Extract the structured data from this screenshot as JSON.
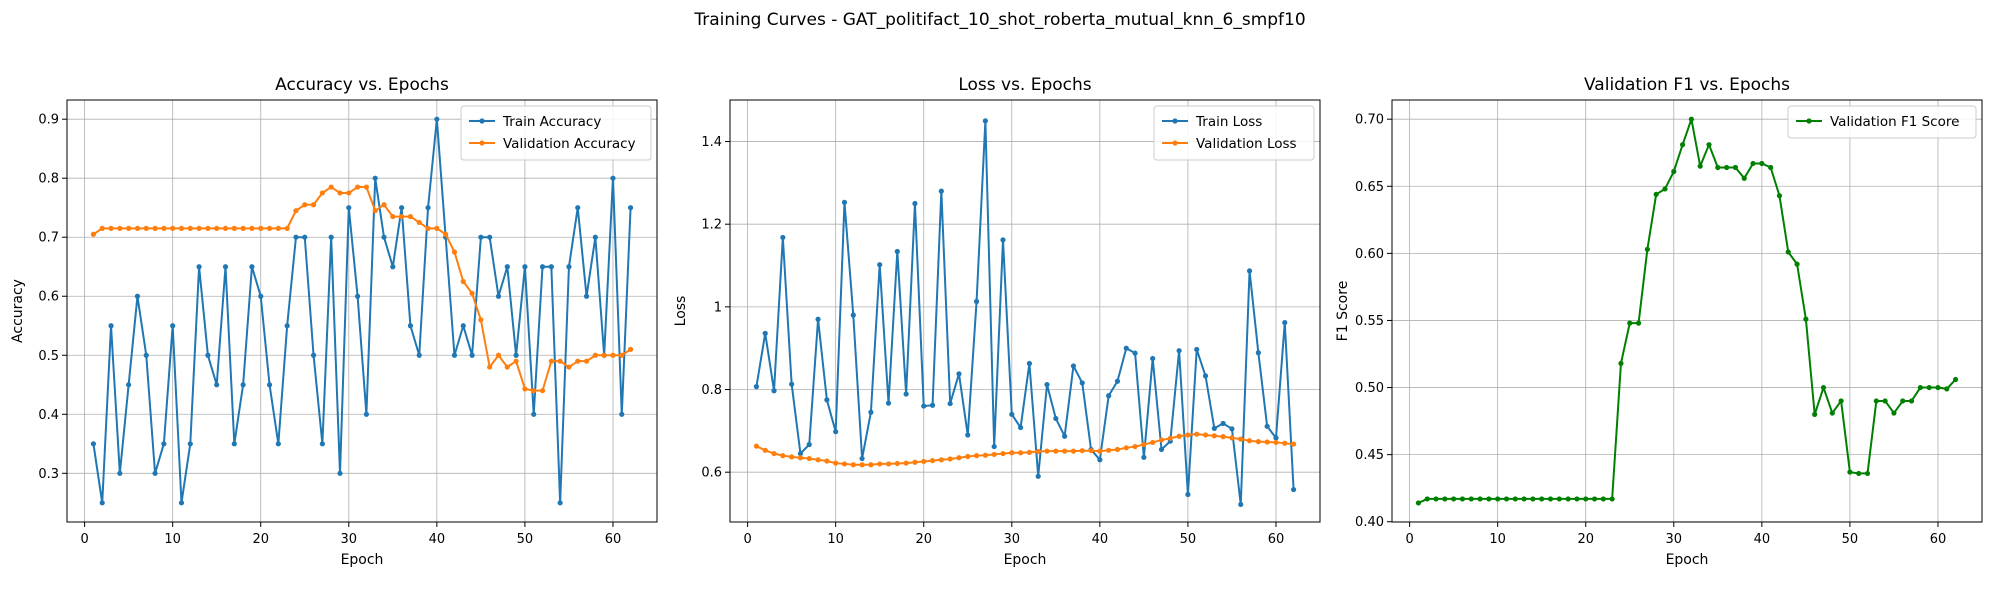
{
  "suptitle": "Training Curves - GAT_politifact_10_shot_roberta_mutual_knn_6_smpf10",
  "chart_data": [
    {
      "type": "line",
      "title": "Accuracy vs. Epochs",
      "xlabel": "Epoch",
      "ylabel": "Accuracy",
      "xlim": [
        -2,
        65
      ],
      "ylim": [
        0.2175,
        0.9325
      ],
      "xticks": [
        0,
        10,
        20,
        30,
        40,
        50,
        60
      ],
      "yticks": [
        0.3,
        0.4,
        0.5,
        0.6,
        0.7,
        0.8,
        0.9
      ],
      "grid": true,
      "legend_position": "upper right",
      "x": [
        1,
        2,
        3,
        4,
        5,
        6,
        7,
        8,
        9,
        10,
        11,
        12,
        13,
        14,
        15,
        16,
        17,
        18,
        19,
        20,
        21,
        22,
        23,
        24,
        25,
        26,
        27,
        28,
        29,
        30,
        31,
        32,
        33,
        34,
        35,
        36,
        37,
        38,
        39,
        40,
        41,
        42,
        43,
        44,
        45,
        46,
        47,
        48,
        49,
        50,
        51,
        52,
        53,
        54,
        55,
        56,
        57,
        58,
        59,
        60,
        61,
        62
      ],
      "series": [
        {
          "name": "Train Accuracy",
          "color": "#1f77b4",
          "values": [
            0.35,
            0.25,
            0.55,
            0.3,
            0.45,
            0.6,
            0.5,
            0.3,
            0.35,
            0.55,
            0.25,
            0.35,
            0.65,
            0.5,
            0.45,
            0.65,
            0.35,
            0.45,
            0.65,
            0.6,
            0.45,
            0.35,
            0.55,
            0.7,
            0.7,
            0.5,
            0.35,
            0.7,
            0.3,
            0.75,
            0.6,
            0.4,
            0.8,
            0.7,
            0.65,
            0.75,
            0.55,
            0.5,
            0.75,
            0.9,
            0.7,
            0.5,
            0.55,
            0.5,
            0.7,
            0.7,
            0.6,
            0.65,
            0.5,
            0.65,
            0.4,
            0.65,
            0.65,
            0.25,
            0.65,
            0.75,
            0.6,
            0.7,
            0.5,
            0.8,
            0.4,
            0.75
          ]
        },
        {
          "name": "Validation Accuracy",
          "color": "#ff7f0e",
          "values": [
            0.705,
            0.715,
            0.715,
            0.715,
            0.715,
            0.715,
            0.715,
            0.715,
            0.715,
            0.715,
            0.715,
            0.715,
            0.715,
            0.715,
            0.715,
            0.715,
            0.715,
            0.715,
            0.715,
            0.715,
            0.715,
            0.715,
            0.715,
            0.745,
            0.755,
            0.755,
            0.775,
            0.785,
            0.775,
            0.775,
            0.785,
            0.785,
            0.745,
            0.755,
            0.735,
            0.735,
            0.735,
            0.725,
            0.715,
            0.715,
            0.705,
            0.675,
            0.625,
            0.605,
            0.56,
            0.48,
            0.5,
            0.48,
            0.49,
            0.443,
            0.44,
            0.44,
            0.49,
            0.49,
            0.48,
            0.49,
            0.49,
            0.5,
            0.5,
            0.5,
            0.5,
            0.51
          ]
        }
      ]
    },
    {
      "type": "line",
      "title": "Loss vs. Epochs",
      "xlabel": "Epoch",
      "ylabel": "Loss",
      "xlim": [
        -2,
        65
      ],
      "ylim": [
        0.4795,
        1.5005
      ],
      "xticks": [
        0,
        10,
        20,
        30,
        40,
        50,
        60
      ],
      "yticks": [
        0.6,
        0.8,
        1.0,
        1.2,
        1.4
      ],
      "grid": true,
      "legend_position": "upper right",
      "x": [
        1,
        2,
        3,
        4,
        5,
        6,
        7,
        8,
        9,
        10,
        11,
        12,
        13,
        14,
        15,
        16,
        17,
        18,
        19,
        20,
        21,
        22,
        23,
        24,
        25,
        26,
        27,
        28,
        29,
        30,
        31,
        32,
        33,
        34,
        35,
        36,
        37,
        38,
        39,
        40,
        41,
        42,
        43,
        44,
        45,
        46,
        47,
        48,
        49,
        50,
        51,
        52,
        53,
        54,
        55,
        56,
        57,
        58,
        59,
        60,
        61,
        62
      ],
      "series": [
        {
          "name": "Train Loss",
          "color": "#1f77b4",
          "values": [
            0.807,
            0.936,
            0.797,
            1.168,
            0.813,
            0.645,
            0.667,
            0.97,
            0.775,
            0.698,
            1.253,
            0.98,
            0.633,
            0.745,
            1.102,
            0.767,
            1.134,
            0.789,
            1.25,
            0.76,
            0.762,
            1.28,
            0.766,
            0.838,
            0.69,
            1.013,
            1.45,
            0.662,
            1.162,
            0.74,
            0.708,
            0.863,
            0.59,
            0.812,
            0.73,
            0.687,
            0.857,
            0.816,
            0.655,
            0.63,
            0.785,
            0.82,
            0.9,
            0.888,
            0.636,
            0.875,
            0.655,
            0.675,
            0.894,
            0.546,
            0.897,
            0.833,
            0.706,
            0.718,
            0.705,
            0.522,
            1.087,
            0.889,
            0.711,
            0.683,
            0.962,
            0.558
          ]
        },
        {
          "name": "Validation Loss",
          "color": "#ff7f0e",
          "values": [
            0.663,
            0.653,
            0.645,
            0.64,
            0.637,
            0.635,
            0.633,
            0.63,
            0.627,
            0.622,
            0.62,
            0.618,
            0.618,
            0.618,
            0.62,
            0.62,
            0.621,
            0.622,
            0.624,
            0.626,
            0.628,
            0.63,
            0.632,
            0.635,
            0.638,
            0.64,
            0.641,
            0.643,
            0.645,
            0.647,
            0.647,
            0.648,
            0.65,
            0.651,
            0.651,
            0.651,
            0.651,
            0.652,
            0.652,
            0.651,
            0.653,
            0.655,
            0.659,
            0.662,
            0.667,
            0.672,
            0.678,
            0.682,
            0.687,
            0.69,
            0.692,
            0.69,
            0.688,
            0.686,
            0.683,
            0.68,
            0.676,
            0.674,
            0.673,
            0.672,
            0.67,
            0.668
          ]
        }
      ]
    },
    {
      "type": "line",
      "title": "Validation F1 vs. Epochs",
      "xlabel": "Epoch",
      "ylabel": "F1 Score",
      "xlim": [
        -2,
        65
      ],
      "ylim": [
        0.3998,
        0.7143
      ],
      "xticks": [
        0,
        10,
        20,
        30,
        40,
        50,
        60
      ],
      "yticks": [
        0.4,
        0.45,
        0.5,
        0.55,
        0.6,
        0.65,
        0.7
      ],
      "ytick_labels": [
        "0.40",
        "0.45",
        "0.50",
        "0.55",
        "0.60",
        "0.65",
        "0.70"
      ],
      "grid": true,
      "legend_position": "upper right",
      "x": [
        1,
        2,
        3,
        4,
        5,
        6,
        7,
        8,
        9,
        10,
        11,
        12,
        13,
        14,
        15,
        16,
        17,
        18,
        19,
        20,
        21,
        22,
        23,
        24,
        25,
        26,
        27,
        28,
        29,
        30,
        31,
        32,
        33,
        34,
        35,
        36,
        37,
        38,
        39,
        40,
        41,
        42,
        43,
        44,
        45,
        46,
        47,
        48,
        49,
        50,
        51,
        52,
        53,
        54,
        55,
        56,
        57,
        58,
        59,
        60,
        61,
        62
      ],
      "series": [
        {
          "name": "Validation F1 Score",
          "color": "#008000",
          "values": [
            0.414,
            0.417,
            0.417,
            0.417,
            0.417,
            0.417,
            0.417,
            0.417,
            0.417,
            0.417,
            0.417,
            0.417,
            0.417,
            0.417,
            0.417,
            0.417,
            0.417,
            0.417,
            0.417,
            0.417,
            0.417,
            0.417,
            0.417,
            0.518,
            0.548,
            0.548,
            0.603,
            0.644,
            0.648,
            0.661,
            0.681,
            0.7,
            0.665,
            0.681,
            0.664,
            0.664,
            0.664,
            0.656,
            0.667,
            0.667,
            0.664,
            0.643,
            0.601,
            0.592,
            0.551,
            0.48,
            0.5,
            0.481,
            0.49,
            0.437,
            0.436,
            0.436,
            0.49,
            0.49,
            0.481,
            0.49,
            0.49,
            0.5,
            0.5,
            0.5,
            0.499,
            0.506
          ]
        }
      ]
    }
  ]
}
